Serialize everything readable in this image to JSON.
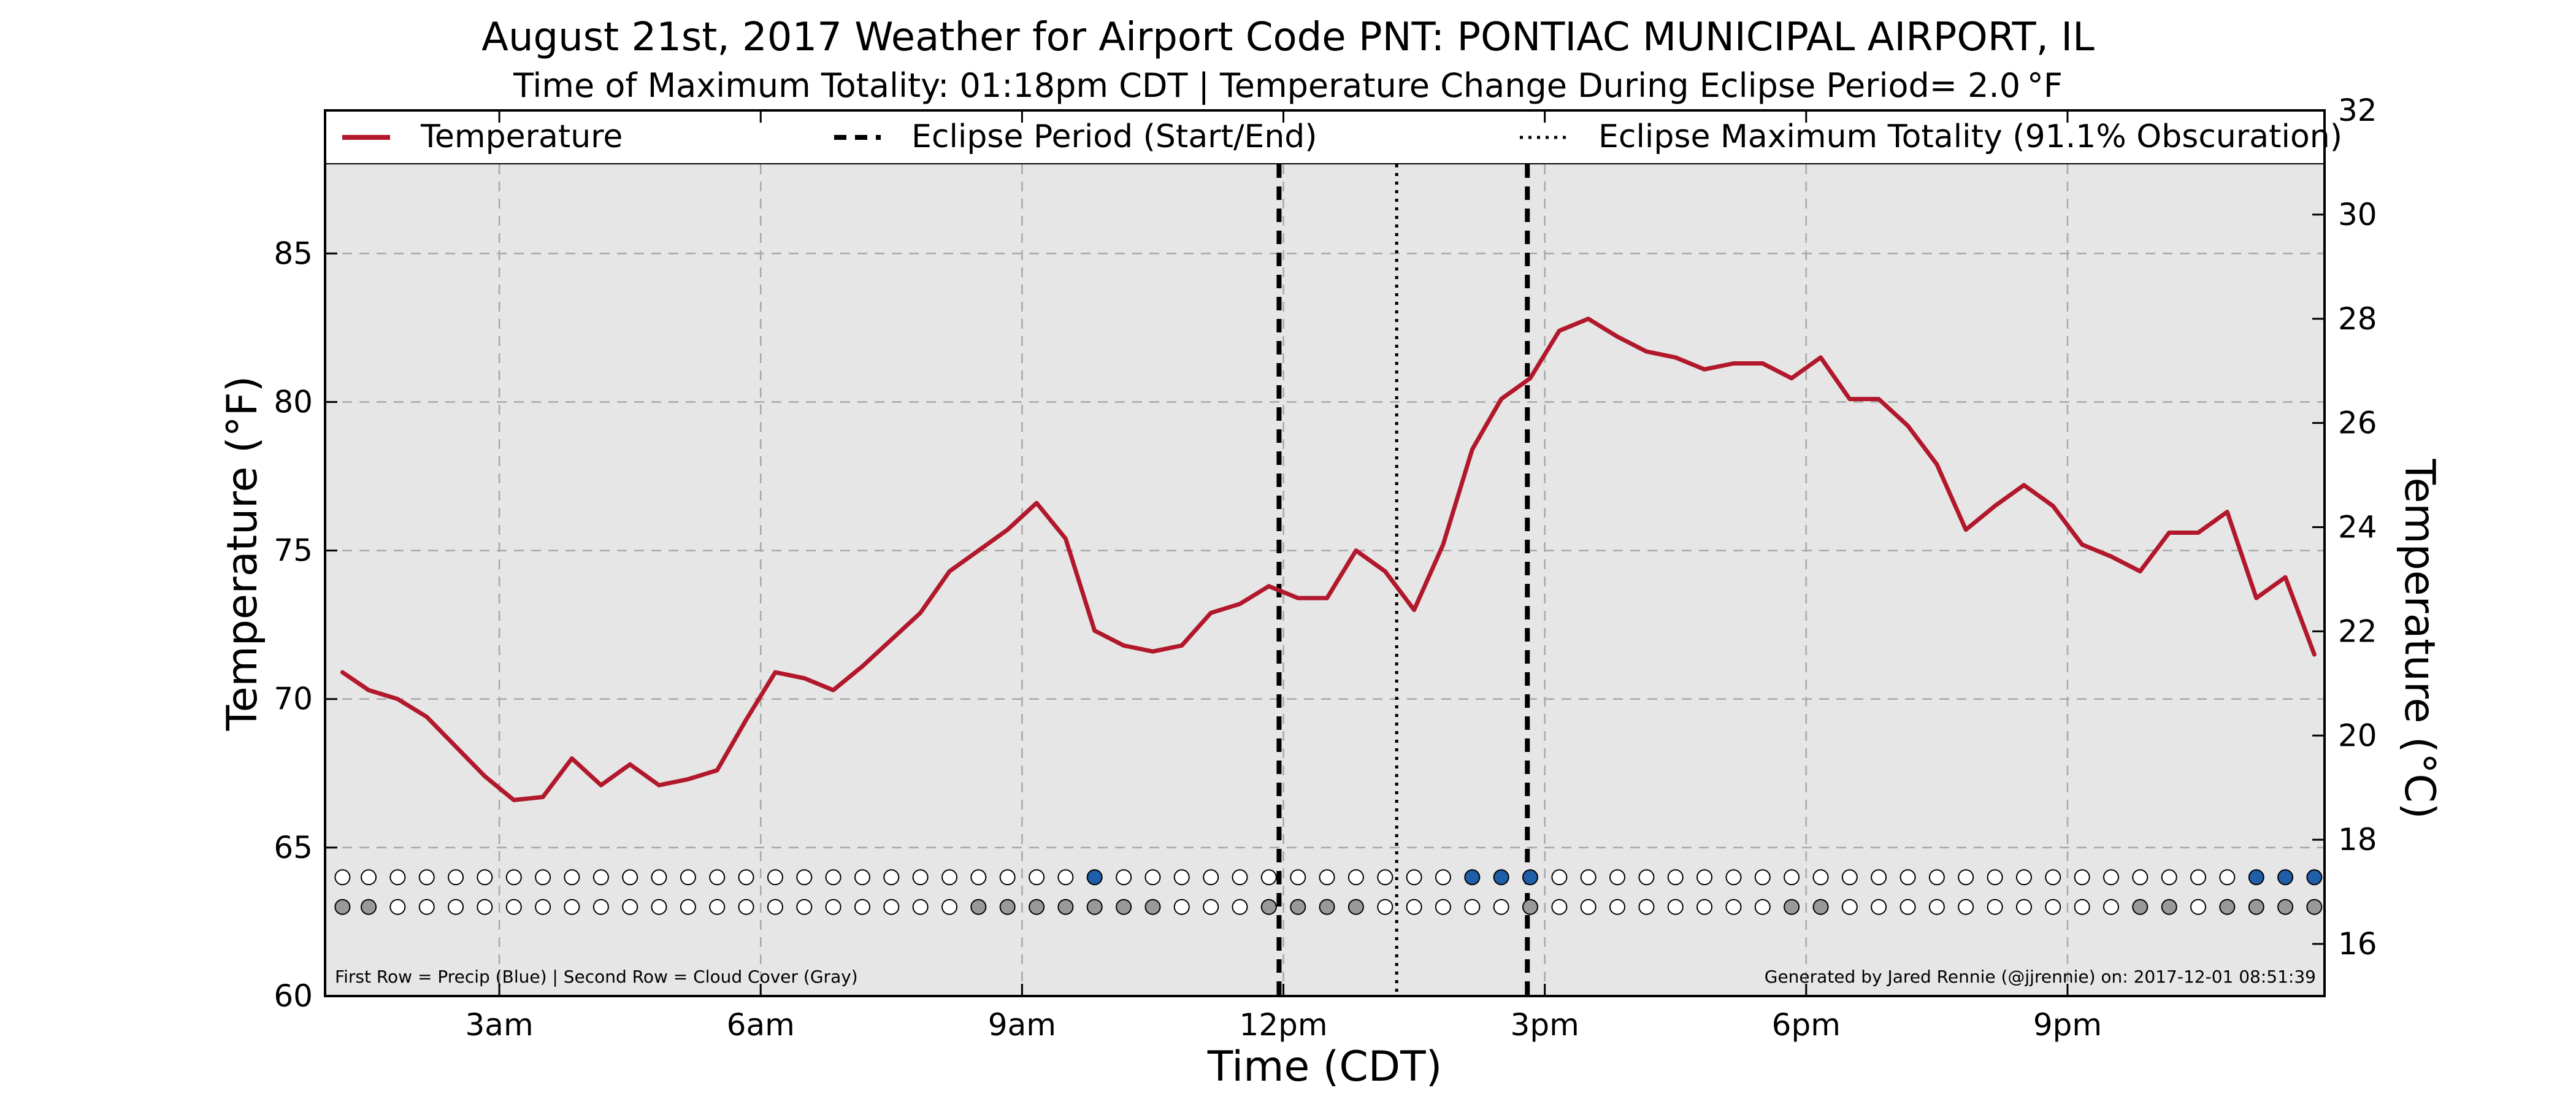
{
  "chart_data": {
    "type": "line",
    "title": "August 21st, 2017 Weather for Airport Code PNT: PONTIAC MUNICIPAL AIRPORT, IL",
    "subtitle": "Time of Maximum Totality: 01:18pm CDT | Temperature Change During Eclipse Period= 2.0 °F",
    "xlabel": "Time (CDT)",
    "ylabel": "Temperature (°F)",
    "ylabel_right": "Temperature (°C)",
    "ylim": [
      60,
      88
    ],
    "ylim_right": [
      15,
      32
    ],
    "xlim": [
      1.0,
      23.95
    ],
    "x_ticks": [
      3,
      6,
      9,
      12,
      15,
      18,
      21
    ],
    "x_tick_labels": [
      "3am",
      "6am",
      "9am",
      "12pm",
      "3pm",
      "6pm",
      "9pm"
    ],
    "y_ticks": [
      60,
      65,
      70,
      75,
      80,
      85
    ],
    "y_tick_labels": [
      "60",
      "65",
      "70",
      "75",
      "80",
      "85"
    ],
    "y_ticks_right": [
      16,
      18,
      20,
      22,
      24,
      26,
      28,
      30,
      32
    ],
    "y_tick_labels_right": [
      "16",
      "18",
      "20",
      "22",
      "24",
      "26",
      "28",
      "30",
      "32"
    ],
    "grid": true,
    "legend_position": "top",
    "series": [
      {
        "name": "Temperature",
        "color": "#b2182b",
        "x": [
          1.2,
          1.5,
          1.833,
          2.167,
          2.5,
          2.833,
          3.167,
          3.5,
          3.833,
          4.167,
          4.5,
          4.833,
          5.167,
          5.5,
          5.833,
          6.167,
          6.5,
          6.833,
          7.167,
          7.5,
          7.833,
          8.167,
          8.5,
          8.833,
          9.167,
          9.5,
          9.833,
          10.167,
          10.5,
          10.833,
          11.167,
          11.5,
          11.833,
          12.167,
          12.5,
          12.833,
          13.167,
          13.5,
          13.833,
          14.167,
          14.5,
          14.833,
          15.167,
          15.5,
          15.833,
          16.167,
          16.5,
          16.833,
          17.167,
          17.5,
          17.833,
          18.167,
          18.5,
          18.833,
          19.167,
          19.5,
          19.833,
          20.167,
          20.5,
          20.833,
          21.167,
          21.5,
          21.833,
          22.167,
          22.5,
          22.833,
          23.167,
          23.5,
          23.833
        ],
        "values": [
          70.9,
          70.3,
          70.0,
          69.4,
          68.4,
          67.4,
          66.6,
          66.7,
          68.0,
          67.1,
          67.8,
          67.1,
          67.3,
          67.6,
          69.3,
          70.9,
          70.7,
          70.3,
          71.1,
          72.0,
          72.9,
          74.3,
          75.0,
          75.7,
          76.6,
          75.4,
          72.3,
          71.8,
          71.6,
          71.8,
          72.9,
          73.2,
          73.8,
          73.4,
          73.4,
          75.0,
          74.3,
          73.0,
          75.2,
          78.4,
          80.1,
          80.8,
          82.4,
          82.8,
          82.2,
          81.7,
          81.5,
          81.1,
          81.3,
          81.3,
          80.8,
          81.5,
          80.1,
          80.1,
          79.2,
          77.9,
          75.7,
          76.5,
          77.2,
          76.5,
          75.2,
          74.8,
          74.3,
          75.6,
          75.6,
          76.3,
          73.4,
          74.1,
          71.5
        ]
      }
    ],
    "eclipse_period": {
      "name": "Eclipse Period (Start/End)",
      "start": 11.95,
      "end": 14.8
    },
    "eclipse_max": {
      "name": "Eclipse Maximum Totality (91.1% Obscuration)",
      "time": 13.3
    },
    "indicator_rows": {
      "x": [
        1.2,
        1.5,
        1.833,
        2.167,
        2.5,
        2.833,
        3.167,
        3.5,
        3.833,
        4.167,
        4.5,
        4.833,
        5.167,
        5.5,
        5.833,
        6.167,
        6.5,
        6.833,
        7.167,
        7.5,
        7.833,
        8.167,
        8.5,
        8.833,
        9.167,
        9.5,
        9.833,
        10.167,
        10.5,
        10.833,
        11.167,
        11.5,
        11.833,
        12.167,
        12.5,
        12.833,
        13.167,
        13.5,
        13.833,
        14.167,
        14.5,
        14.833,
        15.167,
        15.5,
        15.833,
        16.167,
        16.5,
        16.833,
        17.167,
        17.5,
        17.833,
        18.167,
        18.5,
        18.833,
        19.167,
        19.5,
        19.833,
        20.167,
        20.5,
        20.833,
        21.167,
        21.5,
        21.833,
        22.167,
        22.5,
        22.833,
        23.167,
        23.5,
        23.833
      ],
      "precip_y": 64.0,
      "cloud_y": 63.0,
      "precip": [
        0,
        0,
        0,
        0,
        0,
        0,
        0,
        0,
        0,
        0,
        0,
        0,
        0,
        0,
        0,
        0,
        0,
        0,
        0,
        0,
        0,
        0,
        0,
        0,
        0,
        0,
        1,
        0,
        0,
        0,
        0,
        0,
        0,
        0,
        0,
        0,
        0,
        0,
        0,
        1,
        1,
        1,
        0,
        0,
        0,
        0,
        0,
        0,
        0,
        0,
        0,
        0,
        0,
        0,
        0,
        0,
        0,
        0,
        0,
        0,
        0,
        0,
        0,
        0,
        0,
        0,
        1,
        1,
        1
      ],
      "cloud": [
        1,
        1,
        0,
        0,
        0,
        0,
        0,
        0,
        0,
        0,
        0,
        0,
        0,
        0,
        0,
        0,
        0,
        0,
        0,
        0,
        0,
        0,
        1,
        1,
        1,
        1,
        1,
        1,
        1,
        0,
        0,
        0,
        1,
        1,
        1,
        1,
        0,
        0,
        0,
        0,
        0,
        1,
        0,
        0,
        0,
        0,
        0,
        0,
        0,
        0,
        1,
        1,
        0,
        0,
        0,
        0,
        0,
        0,
        0,
        0,
        0,
        0,
        1,
        1,
        0,
        1,
        1,
        1,
        1
      ],
      "precip_color": "#1f5ea8",
      "cloud_color": "#999999",
      "empty_color": "#ffffff"
    },
    "footnote_left": "First Row = Precip (Blue) | Second Row = Cloud Cover (Gray)",
    "footnote_right": "Generated by Jared Rennie (@jjrennie) on: 2017-12-01 08:51:39",
    "legend": [
      "Temperature",
      "Eclipse Period (Start/End)",
      "Eclipse Maximum Totality (91.1% Obscuration)"
    ],
    "background": "#e6e6e6"
  }
}
